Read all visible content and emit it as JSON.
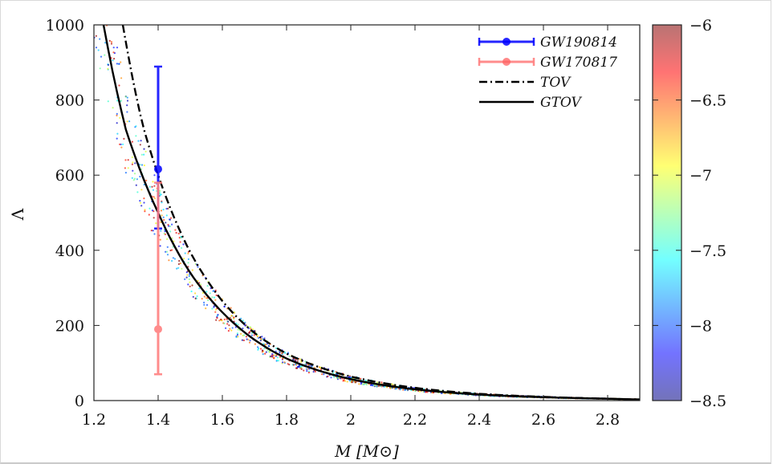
{
  "chart_data": {
    "type": "scatter",
    "xlabel": "M [M⊙]",
    "ylabel": "Λ",
    "xlim": [
      1.2,
      2.9
    ],
    "ylim": [
      0,
      1000
    ],
    "xticks": [
      "1.2",
      "1.4",
      "1.6",
      "1.8",
      "2",
      "2.2",
      "2.4",
      "2.6",
      "2.8"
    ],
    "yticks": [
      "0",
      "200",
      "400",
      "600",
      "800",
      "1000"
    ],
    "grid": false,
    "legend": {
      "placement": "top-right",
      "entries": [
        "GW190814",
        "GW170817",
        "TOV",
        "GTOV"
      ]
    },
    "series": [
      {
        "name": "GW190814",
        "kind": "errorbar",
        "color": "#0000ff",
        "x": 1.4,
        "y": 616,
        "ymin": 458,
        "ymax": 889
      },
      {
        "name": "GW170817",
        "kind": "errorbar",
        "color": "#ff8080",
        "x": 1.4,
        "y": 190,
        "ymin": 70,
        "ymax": 580
      },
      {
        "name": "TOV",
        "kind": "line",
        "style": "dash-dot",
        "color": "#000000",
        "x": [
          1.29,
          1.35,
          1.4,
          1.5,
          1.6,
          1.7,
          1.8,
          2.0,
          2.2,
          2.4,
          2.6,
          2.8,
          2.9
        ],
        "y": [
          1000,
          740,
          600,
          395,
          265,
          180,
          125,
          64,
          34,
          18,
          10,
          5,
          3
        ]
      },
      {
        "name": "GTOV",
        "kind": "line",
        "style": "solid",
        "color": "#000000",
        "x": [
          1.23,
          1.3,
          1.4,
          1.5,
          1.6,
          1.7,
          1.8,
          2.0,
          2.2,
          2.4,
          2.6,
          2.8,
          2.9
        ],
        "y": [
          1000,
          720,
          500,
          340,
          235,
          162,
          112,
          57,
          30,
          16,
          9,
          5,
          3
        ]
      },
      {
        "name": "",
        "kind": "scatter-cloud",
        "color_by": "colorbar",
        "x_range": [
          1.2,
          2.9
        ],
        "y_follows": "GTOV",
        "relative_spread": 0.16
      }
    ],
    "colorbar": {
      "range": [
        -8.5,
        -6
      ],
      "ticks": [
        "−6",
        "−6.5",
        "−7",
        "−7.5",
        "−8",
        "−8.5"
      ],
      "colormap": "jet"
    }
  }
}
